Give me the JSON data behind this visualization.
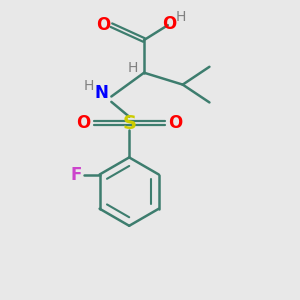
{
  "bg_color": "#e8e8e8",
  "atom_colors": {
    "C": "#3d7d6e",
    "H": "#808080",
    "O": "#ff0000",
    "N": "#0000ff",
    "S": "#cccc00",
    "F": "#cc44cc"
  },
  "bond_color": "#3d7d6e",
  "figsize": [
    3.0,
    3.0
  ],
  "dpi": 100
}
